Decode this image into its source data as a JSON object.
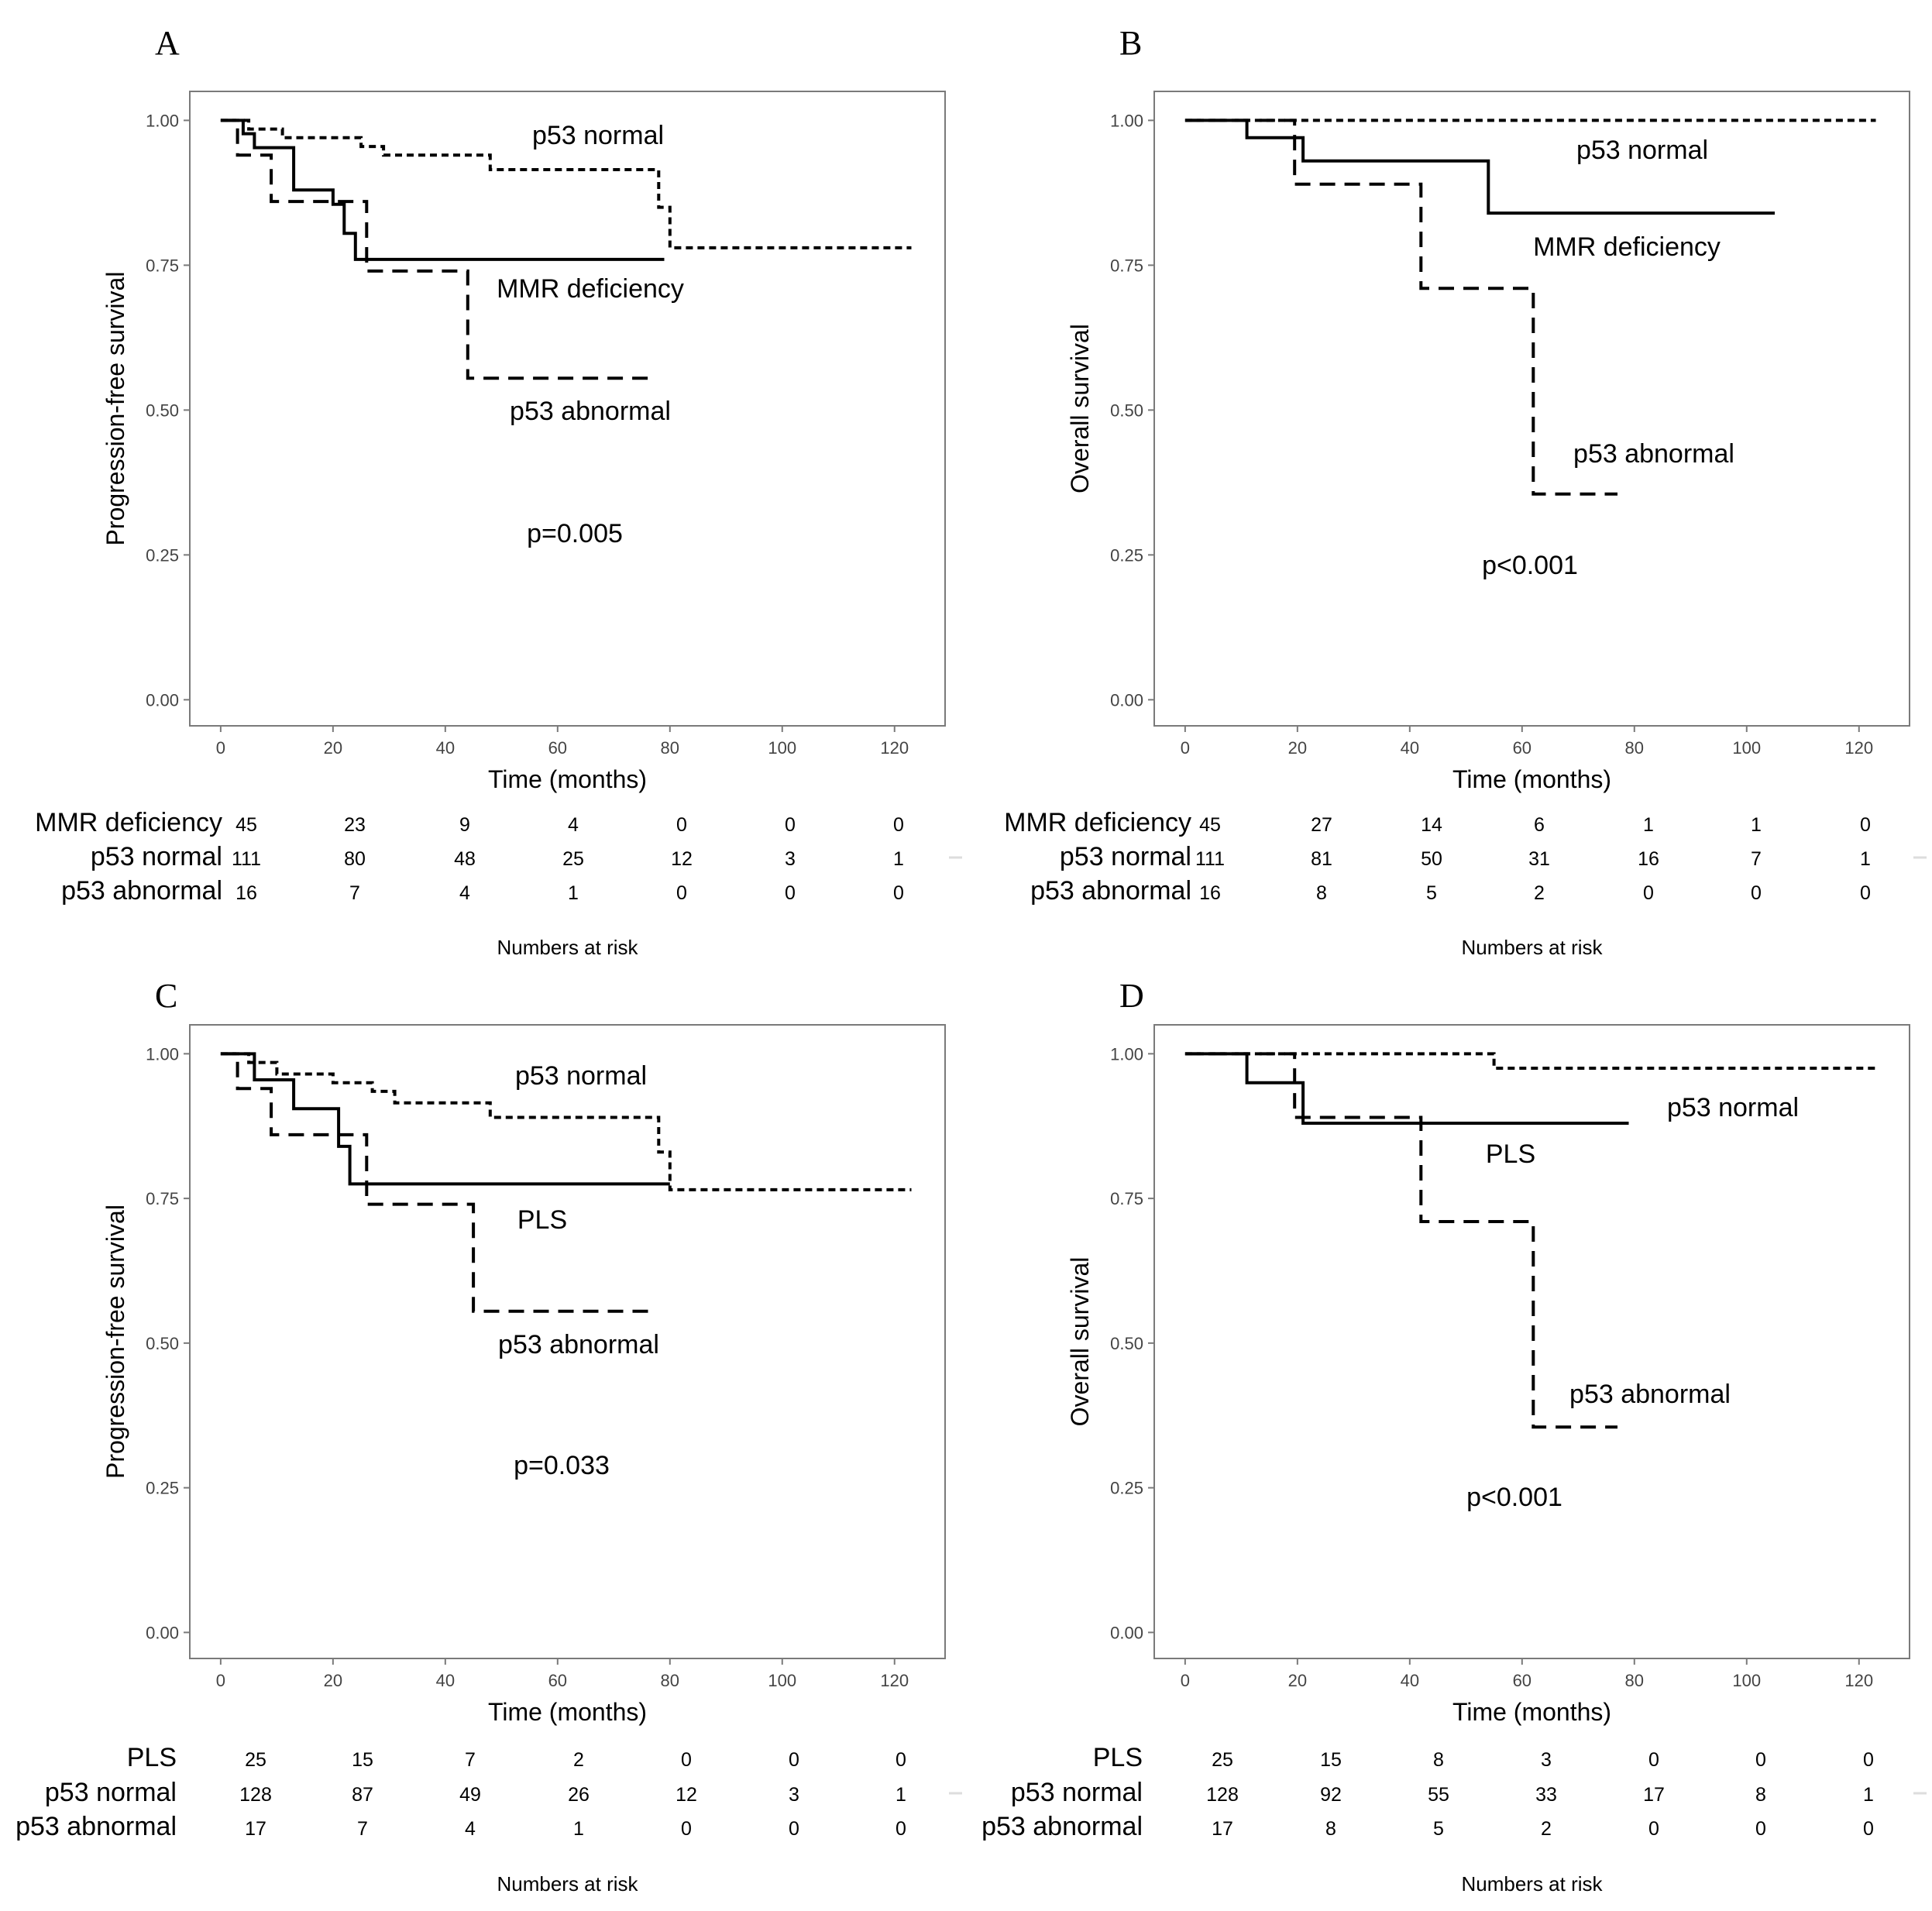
{
  "chart_data": [
    {
      "panel_label": "A",
      "type": "line",
      "subtype": "kaplan-meier",
      "xlabel": "Time (months)",
      "ylabel": "Progression-free survival",
      "xlim": [
        -5.5,
        129
      ],
      "ylim": [
        -0.045,
        1.05
      ],
      "x_ticks": [
        "0",
        "20",
        "40",
        "60",
        "80",
        "100",
        "120"
      ],
      "y_ticks": [
        "0.00",
        "0.25",
        "0.50",
        "0.75",
        "1.00"
      ],
      "grid": false,
      "p_value": "p=0.005",
      "series": [
        {
          "name": "MMR deficiency",
          "line_style": "solid",
          "x": [
            0,
            4,
            6,
            13,
            20,
            22,
            24,
            79
          ],
          "y": [
            1.0,
            0.977,
            0.953,
            0.88,
            0.855,
            0.805,
            0.76,
            0.76
          ]
        },
        {
          "name": "p53 normal",
          "line_style": "dotted",
          "x": [
            0,
            5,
            11,
            25,
            29,
            48,
            78,
            80,
            123
          ],
          "y": [
            1.0,
            0.985,
            0.97,
            0.955,
            0.94,
            0.915,
            0.85,
            0.78,
            0.78
          ]
        },
        {
          "name": "p53 abnormal",
          "line_style": "dashed",
          "x": [
            0,
            3,
            9,
            26,
            44,
            77
          ],
          "y": [
            1.0,
            0.94,
            0.86,
            0.74,
            0.555,
            0.555
          ]
        }
      ],
      "risk_table": {
        "title": "Numbers at risk",
        "rows": [
          {
            "label": "MMR deficiency",
            "values": [
              "45",
              "23",
              "9",
              "4",
              "0",
              "0",
              "0"
            ]
          },
          {
            "label": "p53 normal",
            "values": [
              "111",
              "80",
              "48",
              "25",
              "12",
              "3",
              "1"
            ]
          },
          {
            "label": "p53 abnormal",
            "values": [
              "16",
              "7",
              "4",
              "1",
              "0",
              "0",
              "0"
            ]
          }
        ]
      }
    },
    {
      "panel_label": "B",
      "type": "line",
      "subtype": "kaplan-meier",
      "xlabel": "Time (months)",
      "ylabel": "Overall survival",
      "xlim": [
        -5.5,
        129
      ],
      "ylim": [
        -0.045,
        1.05
      ],
      "x_ticks": [
        "0",
        "20",
        "40",
        "60",
        "80",
        "100",
        "120"
      ],
      "y_ticks": [
        "0.00",
        "0.25",
        "0.50",
        "0.75",
        "1.00"
      ],
      "grid": false,
      "p_value": "p<0.001",
      "series": [
        {
          "name": "MMR deficiency",
          "line_style": "solid",
          "x": [
            0,
            11,
            21,
            54,
            105
          ],
          "y": [
            1.0,
            0.97,
            0.93,
            0.84,
            0.84
          ]
        },
        {
          "name": "p53 normal",
          "line_style": "dotted",
          "x": [
            0,
            123
          ],
          "y": [
            1.0,
            1.0
          ]
        },
        {
          "name": "p53 abnormal",
          "line_style": "dashed",
          "x": [
            0,
            19.5,
            42,
            62,
            77
          ],
          "y": [
            1.0,
            0.89,
            0.71,
            0.355,
            0.355
          ]
        }
      ],
      "risk_table": {
        "title": "Numbers at risk",
        "rows": [
          {
            "label": "MMR deficiency",
            "values": [
              "45",
              "27",
              "14",
              "6",
              "1",
              "1",
              "0"
            ]
          },
          {
            "label": "p53 normal",
            "values": [
              "111",
              "81",
              "50",
              "31",
              "16",
              "7",
              "1"
            ]
          },
          {
            "label": "p53 abnormal",
            "values": [
              "16",
              "8",
              "5",
              "2",
              "0",
              "0",
              "0"
            ]
          }
        ]
      }
    },
    {
      "panel_label": "C",
      "type": "line",
      "subtype": "kaplan-meier",
      "xlabel": "Time (months)",
      "ylabel": "Progression-free survival",
      "xlim": [
        -5.5,
        129
      ],
      "ylim": [
        -0.045,
        1.05
      ],
      "x_ticks": [
        "0",
        "20",
        "40",
        "60",
        "80",
        "100",
        "120"
      ],
      "y_ticks": [
        "0.00",
        "0.25",
        "0.50",
        "0.75",
        "1.00"
      ],
      "grid": false,
      "p_value": "p=0.033",
      "series": [
        {
          "name": "PLS",
          "line_style": "solid",
          "x": [
            0,
            6,
            13,
            21,
            23,
            80
          ],
          "y": [
            1.0,
            0.955,
            0.905,
            0.84,
            0.775,
            0.775
          ]
        },
        {
          "name": "p53 normal",
          "line_style": "dotted",
          "x": [
            0,
            5,
            10,
            20,
            27,
            31,
            48,
            78,
            80,
            123
          ],
          "y": [
            1.0,
            0.985,
            0.965,
            0.95,
            0.935,
            0.915,
            0.89,
            0.83,
            0.765,
            0.765
          ]
        },
        {
          "name": "p53 abnormal",
          "line_style": "dashed",
          "x": [
            0,
            3,
            9,
            26,
            45,
            77
          ],
          "y": [
            1.0,
            0.94,
            0.86,
            0.74,
            0.555,
            0.555
          ]
        }
      ],
      "risk_table": {
        "title": "Numbers at risk",
        "rows": [
          {
            "label": "PLS",
            "values": [
              "25",
              "15",
              "7",
              "2",
              "0",
              "0",
              "0"
            ]
          },
          {
            "label": "p53 normal",
            "values": [
              "128",
              "87",
              "49",
              "26",
              "12",
              "3",
              "1"
            ]
          },
          {
            "label": "p53 abnormal",
            "values": [
              "17",
              "7",
              "4",
              "1",
              "0",
              "0",
              "0"
            ]
          }
        ]
      }
    },
    {
      "panel_label": "D",
      "type": "line",
      "subtype": "kaplan-meier",
      "xlabel": "Time (months)",
      "ylabel": "Overall survival",
      "xlim": [
        -5.5,
        129
      ],
      "ylim": [
        -0.045,
        1.05
      ],
      "x_ticks": [
        "0",
        "20",
        "40",
        "60",
        "80",
        "100",
        "120"
      ],
      "y_ticks": [
        "0.00",
        "0.25",
        "0.50",
        "0.75",
        "1.00"
      ],
      "grid": false,
      "p_value": "p<0.001",
      "series": [
        {
          "name": "PLS",
          "line_style": "solid",
          "x": [
            0,
            11,
            21,
            79
          ],
          "y": [
            1.0,
            0.95,
            0.88,
            0.88
          ]
        },
        {
          "name": "p53 normal",
          "line_style": "dotted",
          "x": [
            0,
            55,
            123
          ],
          "y": [
            1.0,
            0.975,
            0.975
          ]
        },
        {
          "name": "p53 abnormal",
          "line_style": "dashed",
          "x": [
            0,
            19.5,
            42,
            62,
            77
          ],
          "y": [
            1.0,
            0.89,
            0.71,
            0.355,
            0.355
          ]
        }
      ],
      "risk_table": {
        "title": "Numbers at risk",
        "rows": [
          {
            "label": "PLS",
            "values": [
              "25",
              "15",
              "8",
              "3",
              "0",
              "0",
              "0"
            ]
          },
          {
            "label": "p53 normal",
            "values": [
              "128",
              "92",
              "55",
              "33",
              "17",
              "8",
              "1"
            ]
          },
          {
            "label": "p53 abnormal",
            "values": [
              "17",
              "8",
              "5",
              "2",
              "0",
              "0",
              "0"
            ]
          }
        ]
      }
    }
  ]
}
